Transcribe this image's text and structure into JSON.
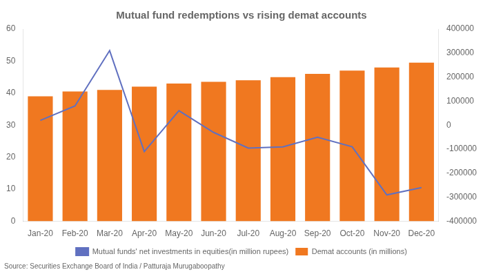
{
  "chart_data": {
    "type": "bar",
    "title": "Mutual fund redemptions vs rising demat accounts",
    "categories": [
      "Jan-20",
      "Feb-20",
      "Mar-20",
      "Apr-20",
      "May-20",
      "Jun-20",
      "Jul-20",
      "Aug-20",
      "Sep-20",
      "Oct-20",
      "Nov-20",
      "Dec-20"
    ],
    "series": [
      {
        "name": "Demat accounts (in millions)",
        "type": "bar",
        "color": "#f07820",
        "values": [
          39,
          40.5,
          41,
          42,
          43,
          43.5,
          44,
          45,
          46,
          47,
          48,
          49.5
        ]
      },
      {
        "name": "Mutual funds' net investments in equities(in million rupees)",
        "type": "line",
        "color": "#6070c0",
        "axis": "y2",
        "values": [
          20000,
          80000,
          310000,
          -110000,
          60000,
          -30000,
          -95000,
          -90000,
          -50000,
          -90000,
          -290000,
          -260000
        ]
      }
    ],
    "ylim": [
      0,
      60
    ],
    "yticks": [
      0,
      10,
      20,
      30,
      40,
      50,
      60
    ],
    "y2lim": [
      -400000,
      400000
    ],
    "y2ticks": [
      -400000,
      -300000,
      -200000,
      -100000,
      0,
      100000,
      200000,
      300000,
      400000
    ],
    "grid": false,
    "legend": "bottom",
    "annotations": [
      "Source: Securities Exchange Board of India / Patturaja Murugaboopathy"
    ]
  }
}
